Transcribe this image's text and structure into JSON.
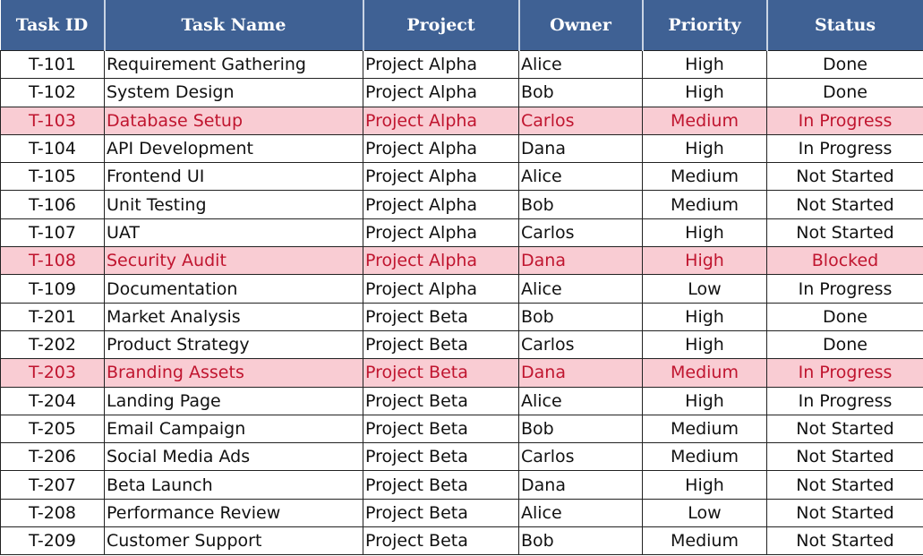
{
  "table": {
    "columns": [
      "Task ID",
      "Task Name",
      "Project",
      "Owner",
      "Priority",
      "Status"
    ],
    "rows": [
      [
        "T-101",
        "Requirement Gathering",
        "Project Alpha",
        "Alice",
        "High",
        "Done"
      ],
      [
        "T-102",
        "System Design",
        "Project Alpha",
        "Bob",
        "High",
        "Done"
      ],
      [
        "T-103",
        "Database Setup",
        "Project Alpha",
        "Carlos",
        "Medium",
        "In Progress"
      ],
      [
        "T-104",
        "API Development",
        "Project Alpha",
        "Dana",
        "High",
        "In Progress"
      ],
      [
        "T-105",
        "Frontend UI",
        "Project Alpha",
        "Alice",
        "Medium",
        "Not Started"
      ],
      [
        "T-106",
        "Unit Testing",
        "Project Alpha",
        "Bob",
        "Medium",
        "Not Started"
      ],
      [
        "T-107",
        "UAT",
        "Project Alpha",
        "Carlos",
        "High",
        "Not Started"
      ],
      [
        "T-108",
        "Security Audit",
        "Project Alpha",
        "Dana",
        "High",
        "Blocked"
      ],
      [
        "T-109",
        "Documentation",
        "Project Alpha",
        "Alice",
        "Low",
        "In Progress"
      ],
      [
        "T-201",
        "Market Analysis",
        "Project Beta",
        "Bob",
        "High",
        "Done"
      ],
      [
        "T-202",
        "Product Strategy",
        "Project Beta",
        "Carlos",
        "High",
        "Done"
      ],
      [
        "T-203",
        "Branding Assets",
        "Project Beta",
        "Dana",
        "Medium",
        "In Progress"
      ],
      [
        "T-204",
        "Landing Page",
        "Project Beta",
        "Alice",
        "High",
        "In Progress"
      ],
      [
        "T-205",
        "Email Campaign",
        "Project Beta",
        "Bob",
        "Medium",
        "Not Started"
      ],
      [
        "T-206",
        "Social Media Ads",
        "Project Beta",
        "Carlos",
        "Medium",
        "Not Started"
      ],
      [
        "T-207",
        "Beta Launch",
        "Project Beta",
        "Dana",
        "High",
        "Not Started"
      ],
      [
        "T-208",
        "Performance Review",
        "Project Beta",
        "Alice",
        "Low",
        "Not Started"
      ],
      [
        "T-209",
        "Customer Support",
        "Project Beta",
        "Bob",
        "Medium",
        "Not Started"
      ]
    ],
    "highlighted_rows": [
      2,
      7,
      11
    ]
  }
}
